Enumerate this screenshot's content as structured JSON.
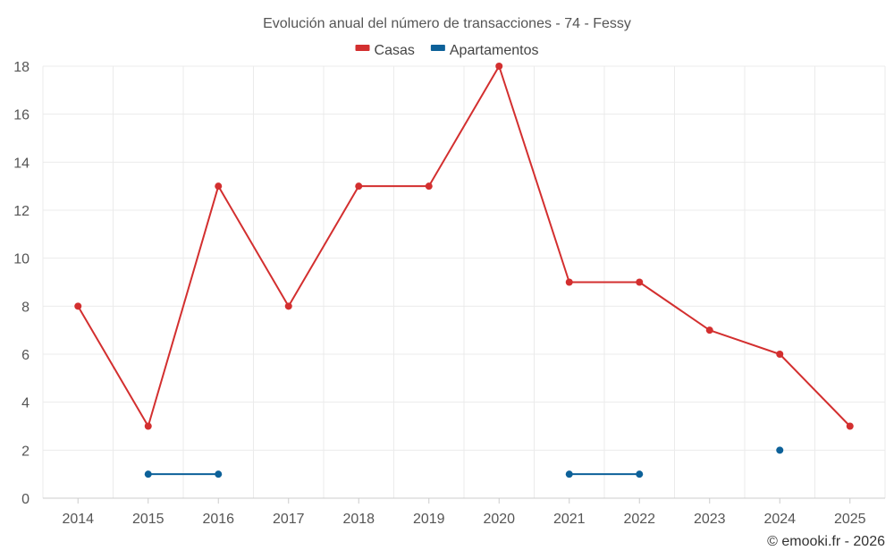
{
  "chart_data": {
    "type": "line",
    "title": "Evolución anual del número de transacciones - 74 - Fessy",
    "xlabel": "",
    "ylabel": "",
    "categories": [
      "2014",
      "2015",
      "2016",
      "2017",
      "2018",
      "2019",
      "2020",
      "2021",
      "2022",
      "2023",
      "2024",
      "2025"
    ],
    "ylim": [
      0,
      18
    ],
    "yticks": [
      0,
      2,
      4,
      6,
      8,
      10,
      12,
      14,
      16,
      18
    ],
    "grid": true,
    "legend_position": "top-center",
    "series": [
      {
        "name": "Casas",
        "color": "#d32f2f",
        "values": [
          8,
          3,
          13,
          8,
          13,
          13,
          18,
          9,
          9,
          7,
          6,
          3
        ]
      },
      {
        "name": "Apartamentos",
        "color": "#0d6199",
        "values": [
          null,
          1,
          1,
          null,
          null,
          null,
          null,
          1,
          1,
          null,
          2,
          null
        ]
      }
    ],
    "credit": "© emooki.fr - 2026"
  }
}
